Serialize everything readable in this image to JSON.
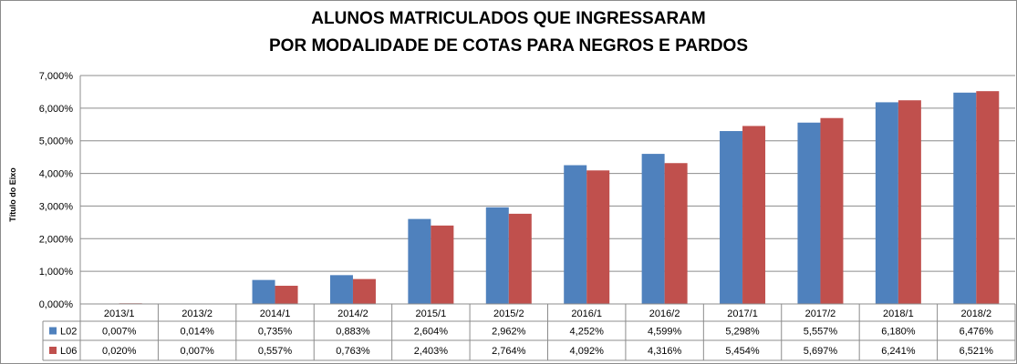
{
  "chart_data": {
    "type": "bar",
    "title_lines": [
      "ALUNOS MATRICULADOS QUE INGRESSARAM",
      "POR MODALIDADE DE COTAS PARA NEGROS E PARDOS"
    ],
    "ylabel": "Título do Eixo",
    "ylim": [
      0,
      7
    ],
    "y_ticks": [
      "0,000%",
      "1,000%",
      "2,000%",
      "3,000%",
      "4,000%",
      "5,000%",
      "6,000%",
      "7,000%"
    ],
    "categories": [
      "2013/1",
      "2013/2",
      "2014/1",
      "2014/2",
      "2015/1",
      "2015/2",
      "2016/1",
      "2016/2",
      "2017/1",
      "2017/2",
      "2018/1",
      "2018/2"
    ],
    "series": [
      {
        "name": "L02",
        "color": "#4f81bd",
        "values": [
          0.007,
          0.014,
          0.735,
          0.883,
          2.604,
          2.962,
          4.252,
          4.599,
          5.298,
          5.557,
          6.18,
          6.476
        ],
        "labels": [
          "0,007%",
          "0,014%",
          "0,735%",
          "0,883%",
          "2,604%",
          "2,962%",
          "4,252%",
          "4,599%",
          "5,298%",
          "5,557%",
          "6,180%",
          "6,476%"
        ]
      },
      {
        "name": "L06",
        "color": "#c0504d",
        "values": [
          0.02,
          0.007,
          0.557,
          0.763,
          2.403,
          2.764,
          4.092,
          4.316,
          5.454,
          5.697,
          6.241,
          6.521
        ],
        "labels": [
          "0,020%",
          "0,007%",
          "0,557%",
          "0,763%",
          "2,403%",
          "2,764%",
          "4,092%",
          "4,316%",
          "5,454%",
          "5,697%",
          "6,241%",
          "6,521%"
        ]
      }
    ],
    "grid": true,
    "legend": "data-table"
  }
}
